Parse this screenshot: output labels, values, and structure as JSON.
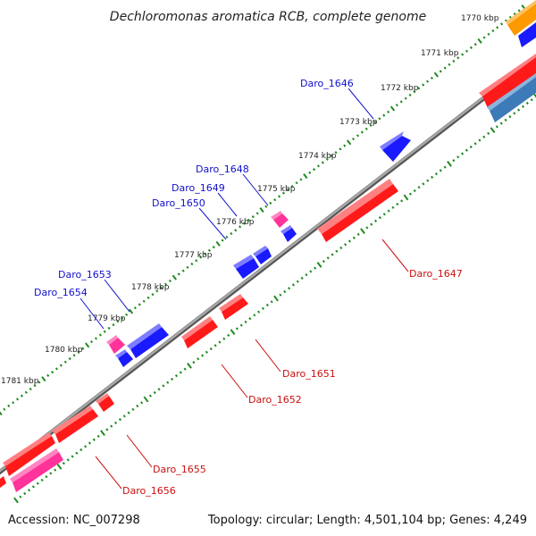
{
  "title": "Dechloromonas aromatica RCB, complete genome",
  "footer": {
    "accession": "Accession: NC_007298",
    "summary": "Topology: circular; Length: 4,501,104 bp; Genes: 4,249"
  },
  "colors": {
    "backbone": "#8a8a8a",
    "tick": "#1f8a1f",
    "forward_label": "#1010cc",
    "reverse_label": "#cc1010",
    "red": "#ff1a1a",
    "blue": "#1a1aff",
    "pink": "#ff3399",
    "orange": "#ff9900",
    "steelblue": "#3d7ab8"
  },
  "scale_ticks": [
    "1770 kbp",
    "1771 kbp",
    "1772 kbp",
    "1773 kbp",
    "1774 kbp",
    "1775 kbp",
    "1776 kbp",
    "1777 kbp",
    "1778 kbp",
    "1779 kbp",
    "1780 kbp",
    "1781 kbp"
  ],
  "gene_labels": {
    "Daro_1646": "Daro_1646",
    "Daro_1647": "Daro_1647",
    "Daro_1648": "Daro_1648",
    "Daro_1649": "Daro_1649",
    "Daro_1650": "Daro_1650",
    "Daro_1651": "Daro_1651",
    "Daro_1652": "Daro_1652",
    "Daro_1653": "Daro_1653",
    "Daro_1654": "Daro_1654",
    "Daro_1655": "Daro_1655",
    "Daro_1656": "Daro_1656"
  }
}
